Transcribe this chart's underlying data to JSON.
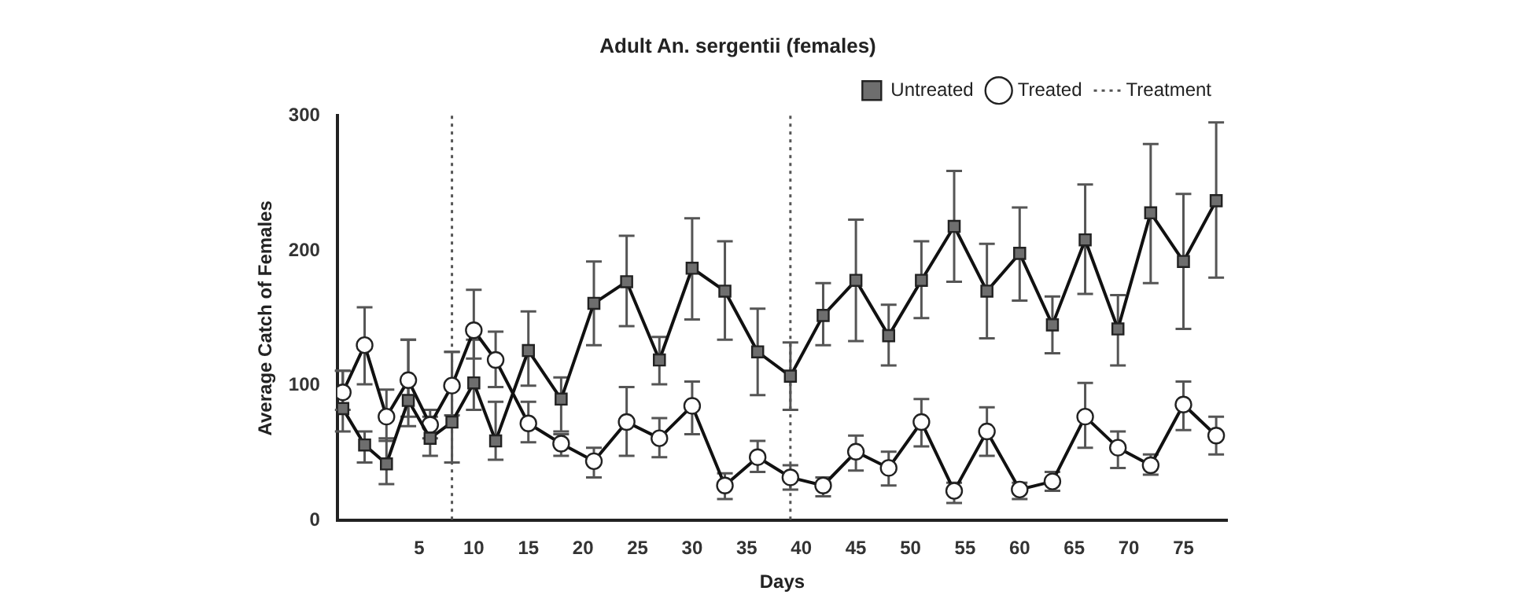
{
  "chart_data": {
    "type": "line",
    "title": "Adult An. sergentii (females)",
    "xlabel": "Days",
    "ylabel": "Average Catch of Females",
    "xlim": [
      -2.5,
      79
    ],
    "xticks": [
      5,
      10,
      15,
      20,
      25,
      30,
      35,
      40,
      45,
      50,
      55,
      60,
      65,
      70,
      75
    ],
    "ylim": [
      0,
      300
    ],
    "yticks": [
      0,
      100,
      200,
      300
    ],
    "grid": false,
    "legend": "top right",
    "line_style": "solid",
    "series": [
      {
        "name": "Untreated",
        "color": "#6e6e6e",
        "marker": "square",
        "x": [
          -2,
          0,
          2,
          4,
          6,
          8,
          10,
          12,
          15,
          18,
          21,
          24,
          27,
          30,
          33,
          36,
          39,
          42,
          45,
          48,
          51,
          54,
          57,
          60,
          63,
          66,
          69,
          72,
          75,
          78
        ],
        "values": [
          83,
          56,
          42,
          89,
          61,
          73,
          102,
          59,
          126,
          90,
          161,
          177,
          119,
          187,
          170,
          125,
          107,
          152,
          178,
          137,
          178,
          218,
          170,
          198,
          145,
          208,
          142,
          228,
          192,
          237
        ],
        "errors": [
          [
            66,
            111
          ],
          [
            43,
            66
          ],
          [
            27,
            61
          ],
          [
            70,
            134
          ],
          [
            48,
            77
          ],
          [
            43,
            125
          ],
          [
            82,
            134
          ],
          [
            45,
            88
          ],
          [
            100,
            155
          ],
          [
            66,
            106
          ],
          [
            130,
            192
          ],
          [
            144,
            211
          ],
          [
            101,
            136
          ],
          [
            149,
            224
          ],
          [
            134,
            207
          ],
          [
            93,
            157
          ],
          [
            82,
            132
          ],
          [
            130,
            176
          ],
          [
            133,
            223
          ],
          [
            115,
            160
          ],
          [
            150,
            207
          ],
          [
            177,
            259
          ],
          [
            135,
            205
          ],
          [
            163,
            232
          ],
          [
            124,
            166
          ],
          [
            168,
            249
          ],
          [
            115,
            167
          ],
          [
            176,
            279
          ],
          [
            142,
            242
          ],
          [
            180,
            295
          ]
        ]
      },
      {
        "name": "Treated",
        "color": "#ffffff",
        "marker": "circle",
        "x": [
          -2,
          0,
          2,
          4,
          6,
          8,
          10,
          12,
          15,
          18,
          21,
          24,
          27,
          30,
          33,
          36,
          39,
          42,
          45,
          48,
          51,
          54,
          57,
          60,
          63,
          66,
          69,
          72,
          75,
          78
        ],
        "values": [
          95,
          130,
          77,
          104,
          71,
          100,
          141,
          119,
          72,
          57,
          44,
          73,
          61,
          85,
          26,
          47,
          32,
          26,
          51,
          39,
          73,
          22,
          66,
          23,
          29,
          77,
          54,
          41,
          86,
          63
        ],
        "errors": [
          [
            82,
            111
          ],
          [
            101,
            158
          ],
          [
            59,
            97
          ],
          [
            77,
            134
          ],
          [
            61,
            82
          ],
          [
            78,
            125
          ],
          [
            120,
            171
          ],
          [
            99,
            140
          ],
          [
            58,
            88
          ],
          [
            48,
            64
          ],
          [
            32,
            54
          ],
          [
            48,
            99
          ],
          [
            47,
            76
          ],
          [
            64,
            103
          ],
          [
            16,
            35
          ],
          [
            36,
            59
          ],
          [
            23,
            41
          ],
          [
            18,
            32
          ],
          [
            37,
            63
          ],
          [
            26,
            51
          ],
          [
            55,
            90
          ],
          [
            13,
            28
          ],
          [
            48,
            84
          ],
          [
            16,
            28
          ],
          [
            22,
            36
          ],
          [
            54,
            102
          ],
          [
            39,
            66
          ],
          [
            34,
            49
          ],
          [
            67,
            103
          ],
          [
            49,
            77
          ]
        ]
      }
    ],
    "ref_lines": [
      {
        "axis": "x",
        "value": 8,
        "label": "Treatment",
        "line_style": "dotted",
        "color": "#555555"
      },
      {
        "axis": "x",
        "value": 39,
        "line_style": "dotted",
        "color": "#555555"
      }
    ]
  }
}
